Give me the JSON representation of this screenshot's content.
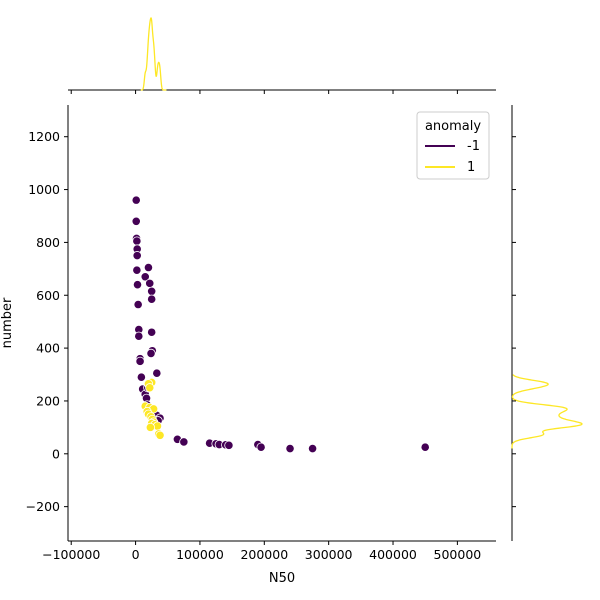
{
  "chart_data": {
    "type": "scatter",
    "title": "",
    "xlabel": "N50",
    "ylabel": "number",
    "xlim": [
      -105000,
      560000
    ],
    "ylim": [
      -330,
      1320
    ],
    "xticks": [
      -100000,
      0,
      100000,
      200000,
      300000,
      400000,
      500000
    ],
    "yticks": [
      -200,
      0,
      200,
      400,
      600,
      800,
      1000,
      1200
    ],
    "grid": false,
    "legend": {
      "title": "anomaly",
      "placement": "top-right",
      "entries": [
        {
          "label": "-1",
          "color": "#440154"
        },
        {
          "label": "1",
          "color": "#fde725"
        }
      ]
    },
    "marginal_plots": true,
    "series": [
      {
        "name": "-1",
        "color": "#440154",
        "points": [
          [
            1000,
            960
          ],
          [
            1000,
            880
          ],
          [
            1500,
            815
          ],
          [
            2000,
            805
          ],
          [
            2500,
            775
          ],
          [
            2500,
            750
          ],
          [
            2000,
            695
          ],
          [
            3000,
            640
          ],
          [
            4000,
            565
          ],
          [
            5000,
            470
          ],
          [
            5000,
            445
          ],
          [
            7000,
            360
          ],
          [
            7000,
            350
          ],
          [
            9000,
            290
          ],
          [
            11000,
            245
          ],
          [
            15000,
            670
          ],
          [
            20000,
            705
          ],
          [
            22000,
            645
          ],
          [
            25000,
            615
          ],
          [
            25000,
            585
          ],
          [
            25000,
            460
          ],
          [
            26000,
            390
          ],
          [
            24000,
            380
          ],
          [
            33000,
            305
          ],
          [
            15000,
            225
          ],
          [
            17000,
            210
          ],
          [
            18000,
            185
          ],
          [
            20000,
            165
          ],
          [
            23000,
            150
          ],
          [
            33000,
            145
          ],
          [
            38000,
            135
          ],
          [
            35000,
            125
          ],
          [
            19000,
            250
          ],
          [
            65000,
            55
          ],
          [
            75000,
            45
          ],
          [
            115000,
            40
          ],
          [
            125000,
            38
          ],
          [
            130000,
            35
          ],
          [
            140000,
            34
          ],
          [
            145000,
            32
          ],
          [
            190000,
            35
          ],
          [
            195000,
            25
          ],
          [
            240000,
            20
          ],
          [
            275000,
            20
          ],
          [
            450000,
            25
          ]
        ]
      },
      {
        "name": "1",
        "color": "#fde725",
        "points": [
          [
            25000,
            270
          ],
          [
            20000,
            265
          ],
          [
            22000,
            250
          ],
          [
            15000,
            180
          ],
          [
            22000,
            175
          ],
          [
            28000,
            170
          ],
          [
            18000,
            160
          ],
          [
            20000,
            150
          ],
          [
            24000,
            140
          ],
          [
            26000,
            130
          ],
          [
            28000,
            120
          ],
          [
            25000,
            115
          ],
          [
            30000,
            110
          ],
          [
            34000,
            105
          ],
          [
            23000,
            100
          ],
          [
            36000,
            75
          ],
          [
            38000,
            70
          ]
        ]
      }
    ]
  }
}
